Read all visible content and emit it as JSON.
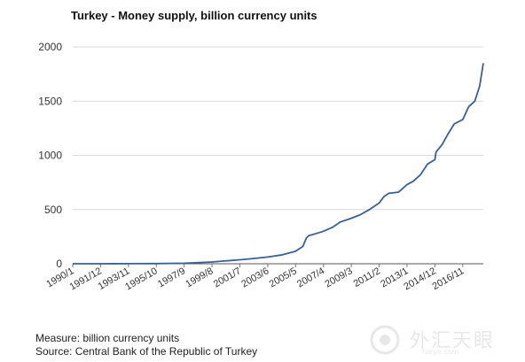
{
  "chart_data": {
    "type": "line",
    "title": "Turkey - Money supply, billion currency units",
    "xlabel": "",
    "ylabel": "",
    "ylim": [
      0,
      2000
    ],
    "yticks": [
      0,
      500,
      1000,
      1500,
      2000
    ],
    "xticks": [
      "1990/1",
      "1991/12",
      "1993/11",
      "1995/10",
      "1997/9",
      "1999/8",
      "2001/7",
      "2003/6",
      "2005/5",
      "2007/4",
      "2009/3",
      "2011/2",
      "2013/1",
      "2014/12",
      "2016/11"
    ],
    "grid": true,
    "legend": "none",
    "series": [
      {
        "color": "#3a5f95",
        "x": [
          "1990/1",
          "1991/12",
          "1993/11",
          "1995/10",
          "1997/9",
          "1998/6",
          "1999/8",
          "2000/6",
          "2001/7",
          "2002/6",
          "2003/6",
          "2004/5",
          "2005/5",
          "2005/11",
          "2006/2",
          "2006/4",
          "2006/8",
          "2007/4",
          "2007/12",
          "2008/6",
          "2009/3",
          "2009/10",
          "2010/6",
          "2011/2",
          "2011/6",
          "2011/10",
          "2012/6",
          "2013/1",
          "2013/6",
          "2013/12",
          "2014/6",
          "2014/12",
          "2015/1",
          "2015/6",
          "2015/11",
          "2016/4",
          "2016/11",
          "2017/4",
          "2017/9",
          "2018/1",
          "2018/4"
        ],
        "values": [
          0,
          0,
          1,
          2,
          5,
          9,
          16,
          25,
          37,
          48,
          62,
          80,
          115,
          160,
          240,
          260,
          272,
          300,
          340,
          385,
          420,
          450,
          500,
          560,
          620,
          650,
          660,
          730,
          760,
          820,
          920,
          960,
          1030,
          1100,
          1200,
          1290,
          1330,
          1450,
          1500,
          1640,
          1850
        ]
      }
    ]
  },
  "footer": {
    "measure": "Measure: billion currency units",
    "source": "Source: Central Bank of the Republic of Turkey"
  },
  "watermark": {
    "text": "外汇天眼",
    "sub": "fxeye.com"
  }
}
